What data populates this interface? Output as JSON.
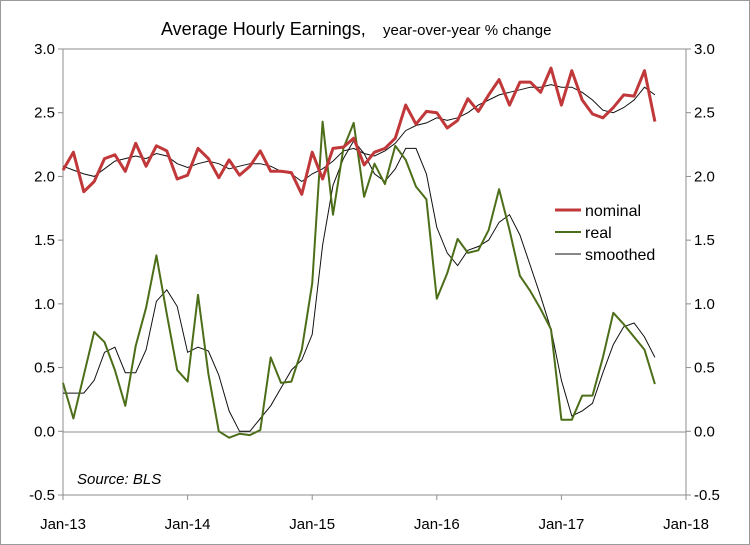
{
  "chart_data": {
    "type": "line",
    "title": "Average Hourly Earnings,",
    "subtitle": "year-over-year % change",
    "annotation": "Source: BLS",
    "xlabel": "",
    "ylabel": "",
    "x_ticks": [
      "Jan-13",
      "Jan-14",
      "Jan-15",
      "Jan-16",
      "Jan-17",
      "Jan-18"
    ],
    "x_range_months": [
      0,
      60
    ],
    "ylim": [
      -0.5,
      3.0
    ],
    "y_ticks": [
      "-0.5",
      "0.0",
      "0.5",
      "1.0",
      "1.5",
      "2.0",
      "2.5",
      "3.0"
    ],
    "y_ticks_right": [
      "-0.5",
      "0.0",
      "0.5",
      "1.0",
      "1.5",
      "2.0",
      "2.5",
      "3.0"
    ],
    "legend_position": "right",
    "grid": false,
    "series": [
      {
        "name": "nominal",
        "color": "#c0383a",
        "values": [
          2.05,
          2.19,
          1.88,
          1.96,
          2.14,
          2.17,
          2.04,
          2.26,
          2.08,
          2.24,
          2.2,
          1.98,
          2.01,
          2.22,
          2.14,
          1.99,
          2.13,
          2.01,
          2.08,
          2.2,
          2.04,
          2.04,
          2.03,
          1.86,
          2.19,
          1.98,
          2.22,
          2.23,
          2.3,
          2.09,
          2.19,
          2.22,
          2.3,
          2.56,
          2.41,
          2.51,
          2.5,
          2.38,
          2.44,
          2.61,
          2.51,
          2.64,
          2.76,
          2.56,
          2.74,
          2.74,
          2.66,
          2.85,
          2.56,
          2.83,
          2.6,
          2.49,
          2.46,
          2.54,
          2.64,
          2.63,
          2.83,
          2.43
        ]
      },
      {
        "name": "real",
        "color": "#4d6e19",
        "values": [
          0.38,
          0.1,
          0.44,
          0.78,
          0.7,
          0.48,
          0.2,
          0.67,
          0.97,
          1.38,
          0.92,
          0.48,
          0.39,
          1.07,
          0.45,
          0.0,
          -0.05,
          -0.02,
          -0.03,
          0.01,
          0.58,
          0.38,
          0.39,
          0.64,
          1.16,
          2.43,
          1.7,
          2.22,
          2.42,
          1.84,
          2.1,
          1.94,
          2.24,
          2.13,
          1.92,
          1.82,
          1.04,
          1.24,
          1.51,
          1.4,
          1.42,
          1.58,
          1.9,
          1.58,
          1.22,
          1.1,
          0.96,
          0.8,
          0.09,
          0.09,
          0.28,
          0.28,
          0.58,
          0.93,
          0.84,
          0.74,
          0.64,
          0.37
        ]
      },
      {
        "name": "smoothed",
        "color": "#111111",
        "values_nominal": [
          2.08,
          2.05,
          2.02,
          2.0,
          2.06,
          2.12,
          2.14,
          2.16,
          2.14,
          2.18,
          2.16,
          2.1,
          2.07,
          2.1,
          2.12,
          2.1,
          2.06,
          2.08,
          2.1,
          2.1,
          2.08,
          2.04,
          2.02,
          1.96,
          2.02,
          2.06,
          2.12,
          2.2,
          2.22,
          2.18,
          2.16,
          2.2,
          2.26,
          2.36,
          2.4,
          2.42,
          2.46,
          2.44,
          2.46,
          2.5,
          2.56,
          2.6,
          2.64,
          2.66,
          2.68,
          2.7,
          2.7,
          2.72,
          2.7,
          2.7,
          2.66,
          2.6,
          2.52,
          2.5,
          2.54,
          2.6,
          2.7,
          2.64
        ],
        "values_real": [
          0.3,
          0.3,
          0.3,
          0.4,
          0.62,
          0.66,
          0.46,
          0.46,
          0.64,
          1.02,
          1.11,
          0.98,
          0.62,
          0.66,
          0.63,
          0.44,
          0.16,
          0.0,
          0.0,
          0.1,
          0.2,
          0.34,
          0.48,
          0.56,
          0.76,
          1.46,
          1.93,
          2.14,
          2.28,
          2.18,
          2.02,
          1.96,
          2.06,
          2.22,
          2.22,
          2.02,
          1.6,
          1.4,
          1.3,
          1.42,
          1.45,
          1.5,
          1.64,
          1.7,
          1.54,
          1.3,
          1.06,
          0.8,
          0.4,
          0.12,
          0.16,
          0.22,
          0.46,
          0.68,
          0.82,
          0.85,
          0.74,
          0.58
        ]
      }
    ]
  }
}
